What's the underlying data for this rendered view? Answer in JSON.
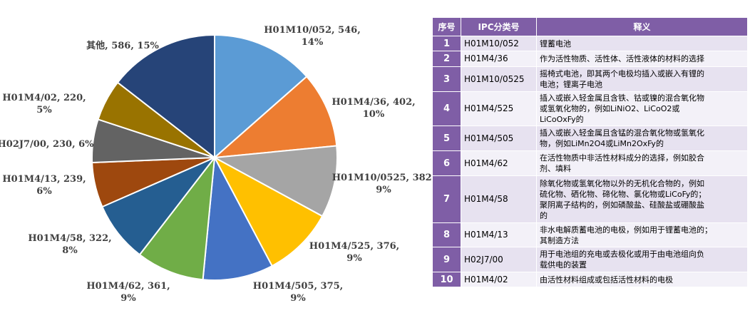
{
  "chart_data": {
    "type": "pie",
    "title": "",
    "slices": [
      {
        "label": "H01M10/052",
        "value": 546,
        "percent": "14%",
        "color": "#5b9bd5"
      },
      {
        "label": "H01M4/36",
        "value": 402,
        "percent": "10%",
        "color": "#ed7d31"
      },
      {
        "label": "H01M10/0525",
        "value": 382,
        "percent": "9%",
        "color": "#a5a5a5"
      },
      {
        "label": "H01M4/525",
        "value": 376,
        "percent": "9%",
        "color": "#ffc000"
      },
      {
        "label": "H01M4/505",
        "value": 375,
        "percent": "9%",
        "color": "#4472c4"
      },
      {
        "label": "H01M4/62",
        "value": 361,
        "percent": "9%",
        "color": "#70ad47"
      },
      {
        "label": "H01M4/58",
        "value": 322,
        "percent": "8%",
        "color": "#255e91"
      },
      {
        "label": "H01M4/13",
        "value": 239,
        "percent": "6%",
        "color": "#9e480e"
      },
      {
        "label": "H02J7/00",
        "value": 230,
        "percent": "6%",
        "color": "#636363"
      },
      {
        "label": "H01M4/02",
        "value": 220,
        "percent": "5%",
        "color": "#997300"
      },
      {
        "label": "其他",
        "value": 586,
        "percent": "15%",
        "color": "#264478"
      }
    ]
  },
  "slice_labels": [
    [
      "H01M10/052, 546,",
      "14%"
    ],
    [
      "H01M4/36, 402,",
      "10%"
    ],
    [
      "H01M10/0525, 382,",
      "9%"
    ],
    [
      "H01M4/525, 376,",
      "9%"
    ],
    [
      "H01M4/505, 375,",
      "9%"
    ],
    [
      "H01M4/62, 361,",
      "9%"
    ],
    [
      "H01M4/58, 322,",
      "8%"
    ],
    [
      "H01M4/13, 239,",
      "6%"
    ],
    [
      "H02J7/00, 230, 6%"
    ],
    [
      "H01M4/02, 220,",
      "5%"
    ],
    [
      "其他, 586, 15%"
    ]
  ],
  "table": {
    "headers": [
      "序号",
      "IPC分类号",
      "释义"
    ],
    "rows": [
      {
        "no": "1",
        "ipc": "H01M10/052",
        "desc": [
          "锂蓄电池"
        ]
      },
      {
        "no": "2",
        "ipc": "H01M4/36",
        "desc": [
          "作为活性物质、活性体、活性液体的材料的选择"
        ]
      },
      {
        "no": "3",
        "ipc": "H01M10/0525",
        "desc": [
          "摇椅式电池，即其两个电极均插入或嵌入有锂的",
          "电池；锂离子电池"
        ]
      },
      {
        "no": "4",
        "ipc": "H01M4/525",
        "desc": [
          "插入或嵌入轻金属且含铁、钴或镍的混合氧化物",
          "或氢氧化物的，例如LiNiO2、LiCoO2或",
          "LiCoOxFy的"
        ]
      },
      {
        "no": "5",
        "ipc": "H01M4/505",
        "desc": [
          "插入或嵌入轻金属且含锰的混合氧化物或氢氧化",
          "物，例如LiMn2O4或LiMn2OxFy的"
        ]
      },
      {
        "no": "6",
        "ipc": "H01M4/62",
        "desc": [
          "在活性物质中非活性材料成分的选择，例如胶合",
          "剂、填料"
        ]
      },
      {
        "no": "7",
        "ipc": "H01M4/58",
        "desc": [
          "除氧化物或氢氧化物以外的无机化合物的，例如",
          "硫化物、硒化物、碲化物、氯化物或LiCoFy的；",
          "聚阴离子结构的，例如磷酸盐、硅酸盐或硼酸盐",
          "的"
        ]
      },
      {
        "no": "8",
        "ipc": "H01M4/13",
        "desc": [
          "非水电解质蓄电池的电极，例如用于锂蓄电池的；",
          "其制造方法"
        ]
      },
      {
        "no": "9",
        "ipc": "H02J7/00",
        "desc": [
          "用于电池组的充电或去极化或用于由电池组向负",
          "载供电的装置"
        ]
      },
      {
        "no": "10",
        "ipc": "H01M4/02",
        "desc": [
          "由活性材料组成或包括活性材料的电极"
        ]
      }
    ]
  }
}
